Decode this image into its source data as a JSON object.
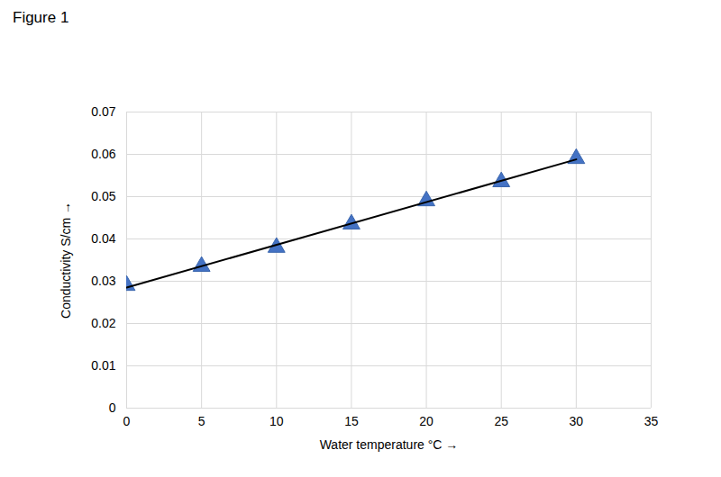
{
  "chart_data": {
    "type": "scatter",
    "title": "Figure 1",
    "x_label": "Water temperature °C",
    "y_label": "Conductivity S/cm",
    "series": [
      {
        "type": "scatter",
        "marker": "triangle",
        "color": "#4472c4",
        "x": [
          0,
          5,
          10,
          15,
          20,
          25,
          30
        ],
        "values": [
          0.029,
          0.0335,
          0.038,
          0.0435,
          0.049,
          0.0535,
          0.059
        ]
      },
      {
        "type": "line",
        "line_style": "solid",
        "color": "#000000",
        "x": [
          0,
          30
        ],
        "values": [
          0.0285,
          0.0588
        ]
      }
    ],
    "xlim": [
      0,
      35
    ],
    "xticks": [
      0,
      5,
      10,
      15,
      20,
      25,
      30,
      35
    ],
    "ylim": [
      0,
      0.07
    ],
    "yticks": [
      0,
      0.01,
      0.02,
      0.03,
      0.04,
      0.05,
      0.06,
      0.07
    ],
    "grid": true
  }
}
